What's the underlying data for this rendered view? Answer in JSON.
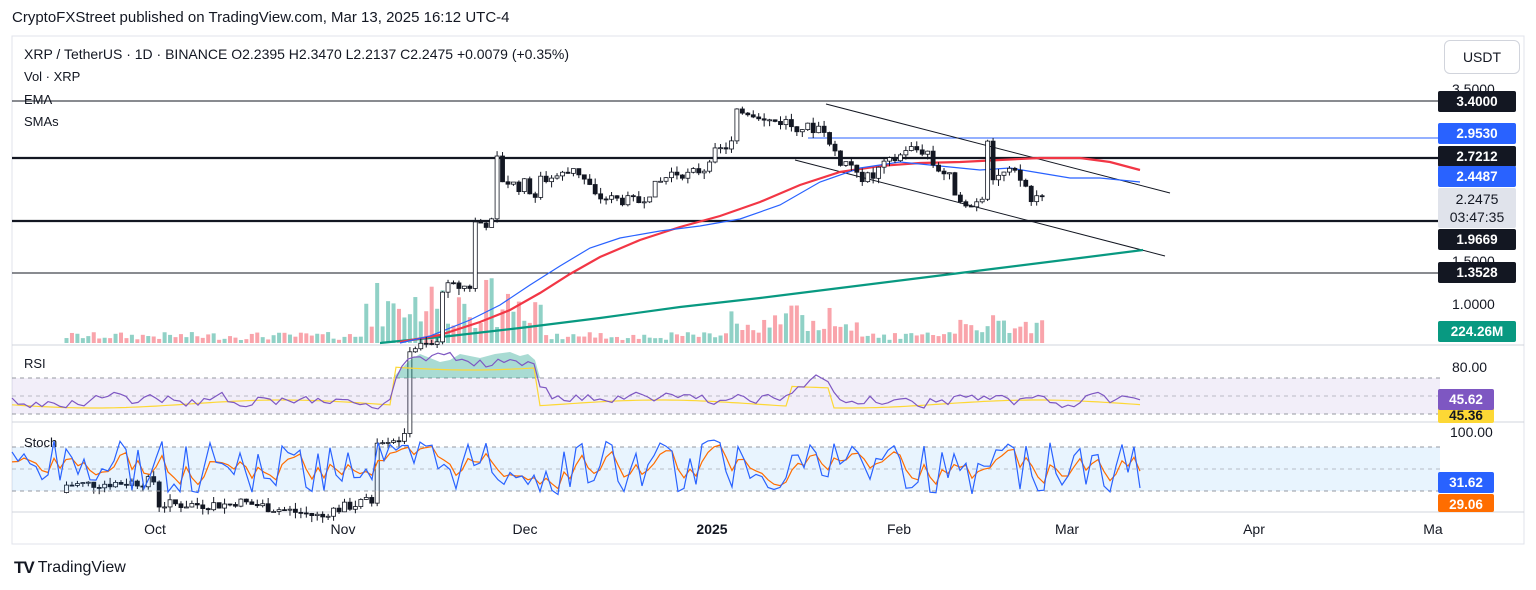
{
  "header": {
    "text": "CryptoFXStreet published on TradingView.com, Mar 13, 2025 16:12 UTC-4"
  },
  "legend": {
    "symbol_line": "XRP / TetherUS · 1D · BINANCE  O2.2395  H2.3470  L2.2137  C2.2475  +0.0079 (+0.35%)",
    "vol": "Vol · XRP",
    "ema": "EMA",
    "smas": "SMAs"
  },
  "currency_button": "USDT",
  "footer": {
    "logo": "TV",
    "brand": "TradingView"
  },
  "chart_data": {
    "type": "candlestick",
    "symbol": "XRP / TetherUS",
    "timeframe": "1D",
    "exchange": "BINANCE",
    "ohlc_last": {
      "open": 2.2395,
      "high": 2.347,
      "low": 2.2137,
      "close": 2.2475,
      "change": 0.0079,
      "change_pct": 0.35
    },
    "x_tick_labels": [
      "Oct",
      "Nov",
      "Dec",
      "2025",
      "Feb",
      "Mar",
      "Apr",
      "Ma"
    ],
    "y_tick_labels": [
      "3.5000",
      "1.5000",
      "1.0000"
    ],
    "price_badges": [
      {
        "label": "3.4000",
        "value": 3.4,
        "color": "#131722"
      },
      {
        "label": "2.9530",
        "value": 2.953,
        "color": "#2962ff"
      },
      {
        "label": "2.7212",
        "value": 2.7212,
        "color": "#131722"
      },
      {
        "label": "2.4487",
        "value": 2.4487,
        "color": "#2962ff"
      },
      {
        "label": "1.9669",
        "value": 1.9669,
        "color": "#131722"
      },
      {
        "label": "1.3528",
        "value": 1.3528,
        "color": "#131722"
      }
    ],
    "last_price": {
      "label": "2.2475",
      "countdown": "03:47:35"
    },
    "horizontal_levels": [
      3.4,
      2.953,
      2.7212,
      1.9669,
      1.3528
    ],
    "volume_badge": "224.26M",
    "candles_approx": [
      [
        "2024-09-15",
        0.57,
        0.59
      ],
      [
        "2024-10-01",
        0.6,
        0.54
      ],
      [
        "2024-10-15",
        0.54,
        0.55
      ],
      [
        "2024-11-01",
        0.51,
        0.52
      ],
      [
        "2024-11-10",
        0.55,
        0.73
      ],
      [
        "2024-11-16",
        0.73,
        1.1
      ],
      [
        "2024-11-22",
        1.12,
        1.45
      ],
      [
        "2024-11-28",
        1.46,
        1.95
      ],
      [
        "2024-12-02",
        1.95,
        2.6
      ],
      [
        "2024-12-03",
        2.6,
        2.4
      ],
      [
        "2024-12-07",
        2.3,
        2.4
      ],
      [
        "2024-12-10",
        2.2,
        2.35
      ],
      [
        "2024-12-16",
        2.45,
        2.6
      ],
      [
        "2024-12-20",
        2.3,
        2.2
      ],
      [
        "2024-12-28",
        2.15,
        2.1
      ],
      [
        "2025-01-03",
        2.4,
        2.45
      ],
      [
        "2025-01-06",
        2.45,
        2.4
      ],
      [
        "2025-01-10",
        2.5,
        2.6
      ],
      [
        "2025-01-15",
        2.8,
        3.1
      ],
      [
        "2025-01-16",
        3.2,
        3.3
      ],
      [
        "2025-01-20",
        3.2,
        3.1
      ],
      [
        "2025-01-25",
        3.1,
        3.05
      ],
      [
        "2025-01-30",
        3.0,
        3.05
      ],
      [
        "2025-02-01",
        3.0,
        2.85
      ],
      [
        "2025-02-03",
        2.7,
        2.6
      ],
      [
        "2025-02-06",
        2.55,
        2.4
      ],
      [
        "2025-02-10",
        2.4,
        2.45
      ],
      [
        "2025-02-15",
        2.65,
        2.75
      ],
      [
        "2025-02-20",
        2.7,
        2.6
      ],
      [
        "2025-02-24",
        2.4,
        2.3
      ],
      [
        "2025-02-28",
        2.1,
        2.15
      ],
      [
        "2025-03-02",
        2.2,
        2.95
      ],
      [
        "2025-03-03",
        2.9,
        2.4
      ],
      [
        "2025-03-07",
        2.45,
        2.5
      ],
      [
        "2025-03-10",
        2.3,
        2.1
      ],
      [
        "2025-03-13",
        2.24,
        2.2475
      ]
    ],
    "rsi": {
      "label": "RSI",
      "value": "45.62",
      "ma_value": "45.36",
      "level_label": "80.00"
    },
    "stoch": {
      "label": "Stoch",
      "k": "31.62",
      "d": "29.06",
      "level_label": "100.00"
    }
  },
  "colors": {
    "up": "#089981",
    "down": "#f23645",
    "ema": "#f23645",
    "sma_blue": "#2962ff",
    "sma_green": "#089981",
    "rsi": "#7e57c2",
    "rsi_ma": "#fdd835",
    "stoch_k": "#2962ff",
    "stoch_d": "#ff6d00"
  }
}
